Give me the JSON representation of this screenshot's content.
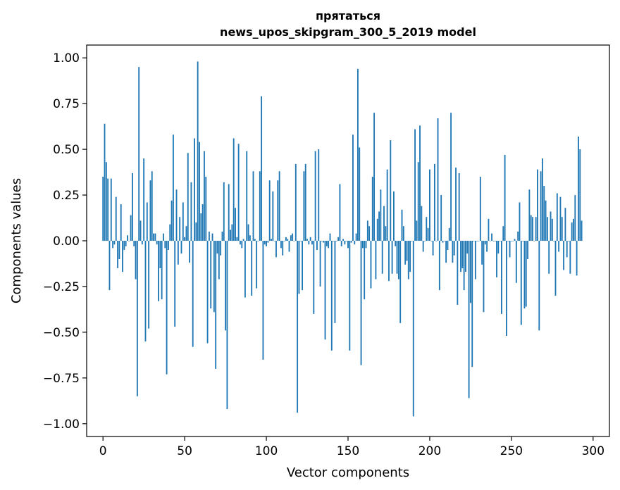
{
  "chart_data": {
    "type": "bar",
    "title": "прятаться",
    "subtitle": "news_upos_skipgram_300_5_2019 model",
    "xlabel": "Vector components",
    "ylabel": "Components values",
    "xlim": [
      -10,
      310
    ],
    "ylim": [
      -1.07,
      1.07
    ],
    "xticks": [
      0,
      50,
      100,
      150,
      200,
      250,
      300
    ],
    "xtick_labels": [
      "0",
      "50",
      "100",
      "150",
      "200",
      "250",
      "300"
    ],
    "yticks": [
      -1.0,
      -0.75,
      -0.5,
      -0.25,
      0.0,
      0.25,
      0.5,
      0.75,
      1.0
    ],
    "ytick_labels": [
      "−1.00",
      "−0.75",
      "−0.50",
      "−0.25",
      "0.00",
      "0.25",
      "0.50",
      "0.75",
      "1.00"
    ],
    "grid": false,
    "bar_color": "#1f77b4",
    "values": [
      0.35,
      0.64,
      0.43,
      0.34,
      -0.27,
      0.34,
      -0.04,
      -0.02,
      0.24,
      -0.15,
      -0.1,
      0.2,
      -0.17,
      -0.05,
      -0.03,
      0.03,
      0.0,
      0.14,
      0.37,
      -0.03,
      -0.21,
      -0.85,
      0.95,
      0.11,
      -0.02,
      0.45,
      -0.55,
      0.21,
      -0.48,
      0.33,
      0.38,
      0.04,
      0.04,
      -0.02,
      -0.33,
      -0.15,
      -0.32,
      0.04,
      -0.04,
      -0.73,
      -0.05,
      0.09,
      0.22,
      0.58,
      -0.47,
      0.28,
      -0.13,
      0.13,
      -0.07,
      0.21,
      0.02,
      0.08,
      0.48,
      -0.12,
      0.32,
      -0.58,
      0.56,
      0.1,
      0.98,
      0.54,
      0.15,
      0.2,
      0.49,
      0.35,
      -0.56,
      0.05,
      -0.37,
      0.04,
      -0.39,
      -0.7,
      -0.07,
      -0.21,
      -0.08,
      0.05,
      0.32,
      -0.49,
      -0.92,
      0.31,
      0.06,
      0.09,
      0.56,
      0.18,
      0.02,
      0.53,
      -0.02,
      -0.04,
      0.01,
      -0.31,
      0.49,
      0.09,
      0.03,
      -0.3,
      0.38,
      0.01,
      -0.26,
      0.0,
      0.38,
      0.79,
      -0.65,
      -0.02,
      -0.03,
      -0.01,
      0.33,
      0.01,
      0.27,
      0.0,
      -0.09,
      0.33,
      0.38,
      -0.04,
      -0.08,
      0.0,
      0.02,
      0.01,
      -0.06,
      0.03,
      0.04,
      0.0,
      0.42,
      -0.94,
      -0.29,
      0.0,
      -0.27,
      0.38,
      0.42,
      0.01,
      -0.02,
      0.02,
      -0.02,
      -0.4,
      0.49,
      -0.05,
      0.5,
      -0.25,
      0.0,
      -0.01,
      -0.54,
      -0.03,
      -0.04,
      0.04,
      -0.6,
      0.0,
      -0.45,
      0.0,
      0.02,
      0.31,
      -0.03,
      0.01,
      -0.02,
      0.0,
      -0.04,
      -0.6,
      -0.01,
      0.58,
      -0.02,
      0.04,
      0.94,
      0.51,
      -0.68,
      -0.04,
      -0.32,
      -0.04,
      0.11,
      0.08,
      -0.26,
      0.35,
      0.7,
      -0.21,
      0.12,
      0.16,
      0.28,
      -0.18,
      0.19,
      0.08,
      0.39,
      -0.22,
      0.55,
      -0.18,
      0.27,
      -0.03,
      -0.18,
      -0.21,
      -0.45,
      0.17,
      0.08,
      -0.13,
      -0.11,
      -0.21,
      -0.17,
      0.0,
      -0.96,
      0.61,
      0.11,
      0.43,
      0.63,
      0.19,
      -0.06,
      0.0,
      0.13,
      0.07,
      0.39,
      0.0,
      -0.08,
      0.42,
      0.0,
      0.67,
      -0.27,
      0.25,
      -0.01,
      0.0,
      -0.12,
      -0.05,
      0.07,
      0.7,
      -0.12,
      -0.08,
      0.4,
      -0.35,
      0.37,
      -0.17,
      -0.15,
      -0.27,
      -0.17,
      -0.07,
      -0.86,
      -0.34,
      -0.69,
      0.0,
      -0.21,
      0.0,
      0.0,
      0.35,
      -0.13,
      -0.39,
      -0.02,
      -0.06,
      0.12,
      0.0,
      0.04,
      0.0,
      0.0,
      -0.2,
      -0.07,
      0.0,
      -0.4,
      0.08,
      0.47,
      -0.52,
      0.0,
      -0.09,
      0.0,
      0.0,
      0.01,
      -0.23,
      0.05,
      0.21,
      -0.46,
      0.0,
      -0.37,
      -0.36,
      -0.1,
      0.28,
      0.14,
      0.13,
      0.0,
      0.13,
      0.39,
      -0.49,
      0.38,
      0.45,
      0.3,
      0.22,
      0.13,
      -0.18,
      0.16,
      0.12,
      0.0,
      -0.3,
      0.26,
      -0.06,
      0.24,
      0.13,
      -0.16,
      0.18,
      -0.09,
      0.0,
      -0.18,
      0.1,
      0.12,
      0.25,
      -0.19,
      0.57,
      0.5,
      0.11
    ]
  }
}
